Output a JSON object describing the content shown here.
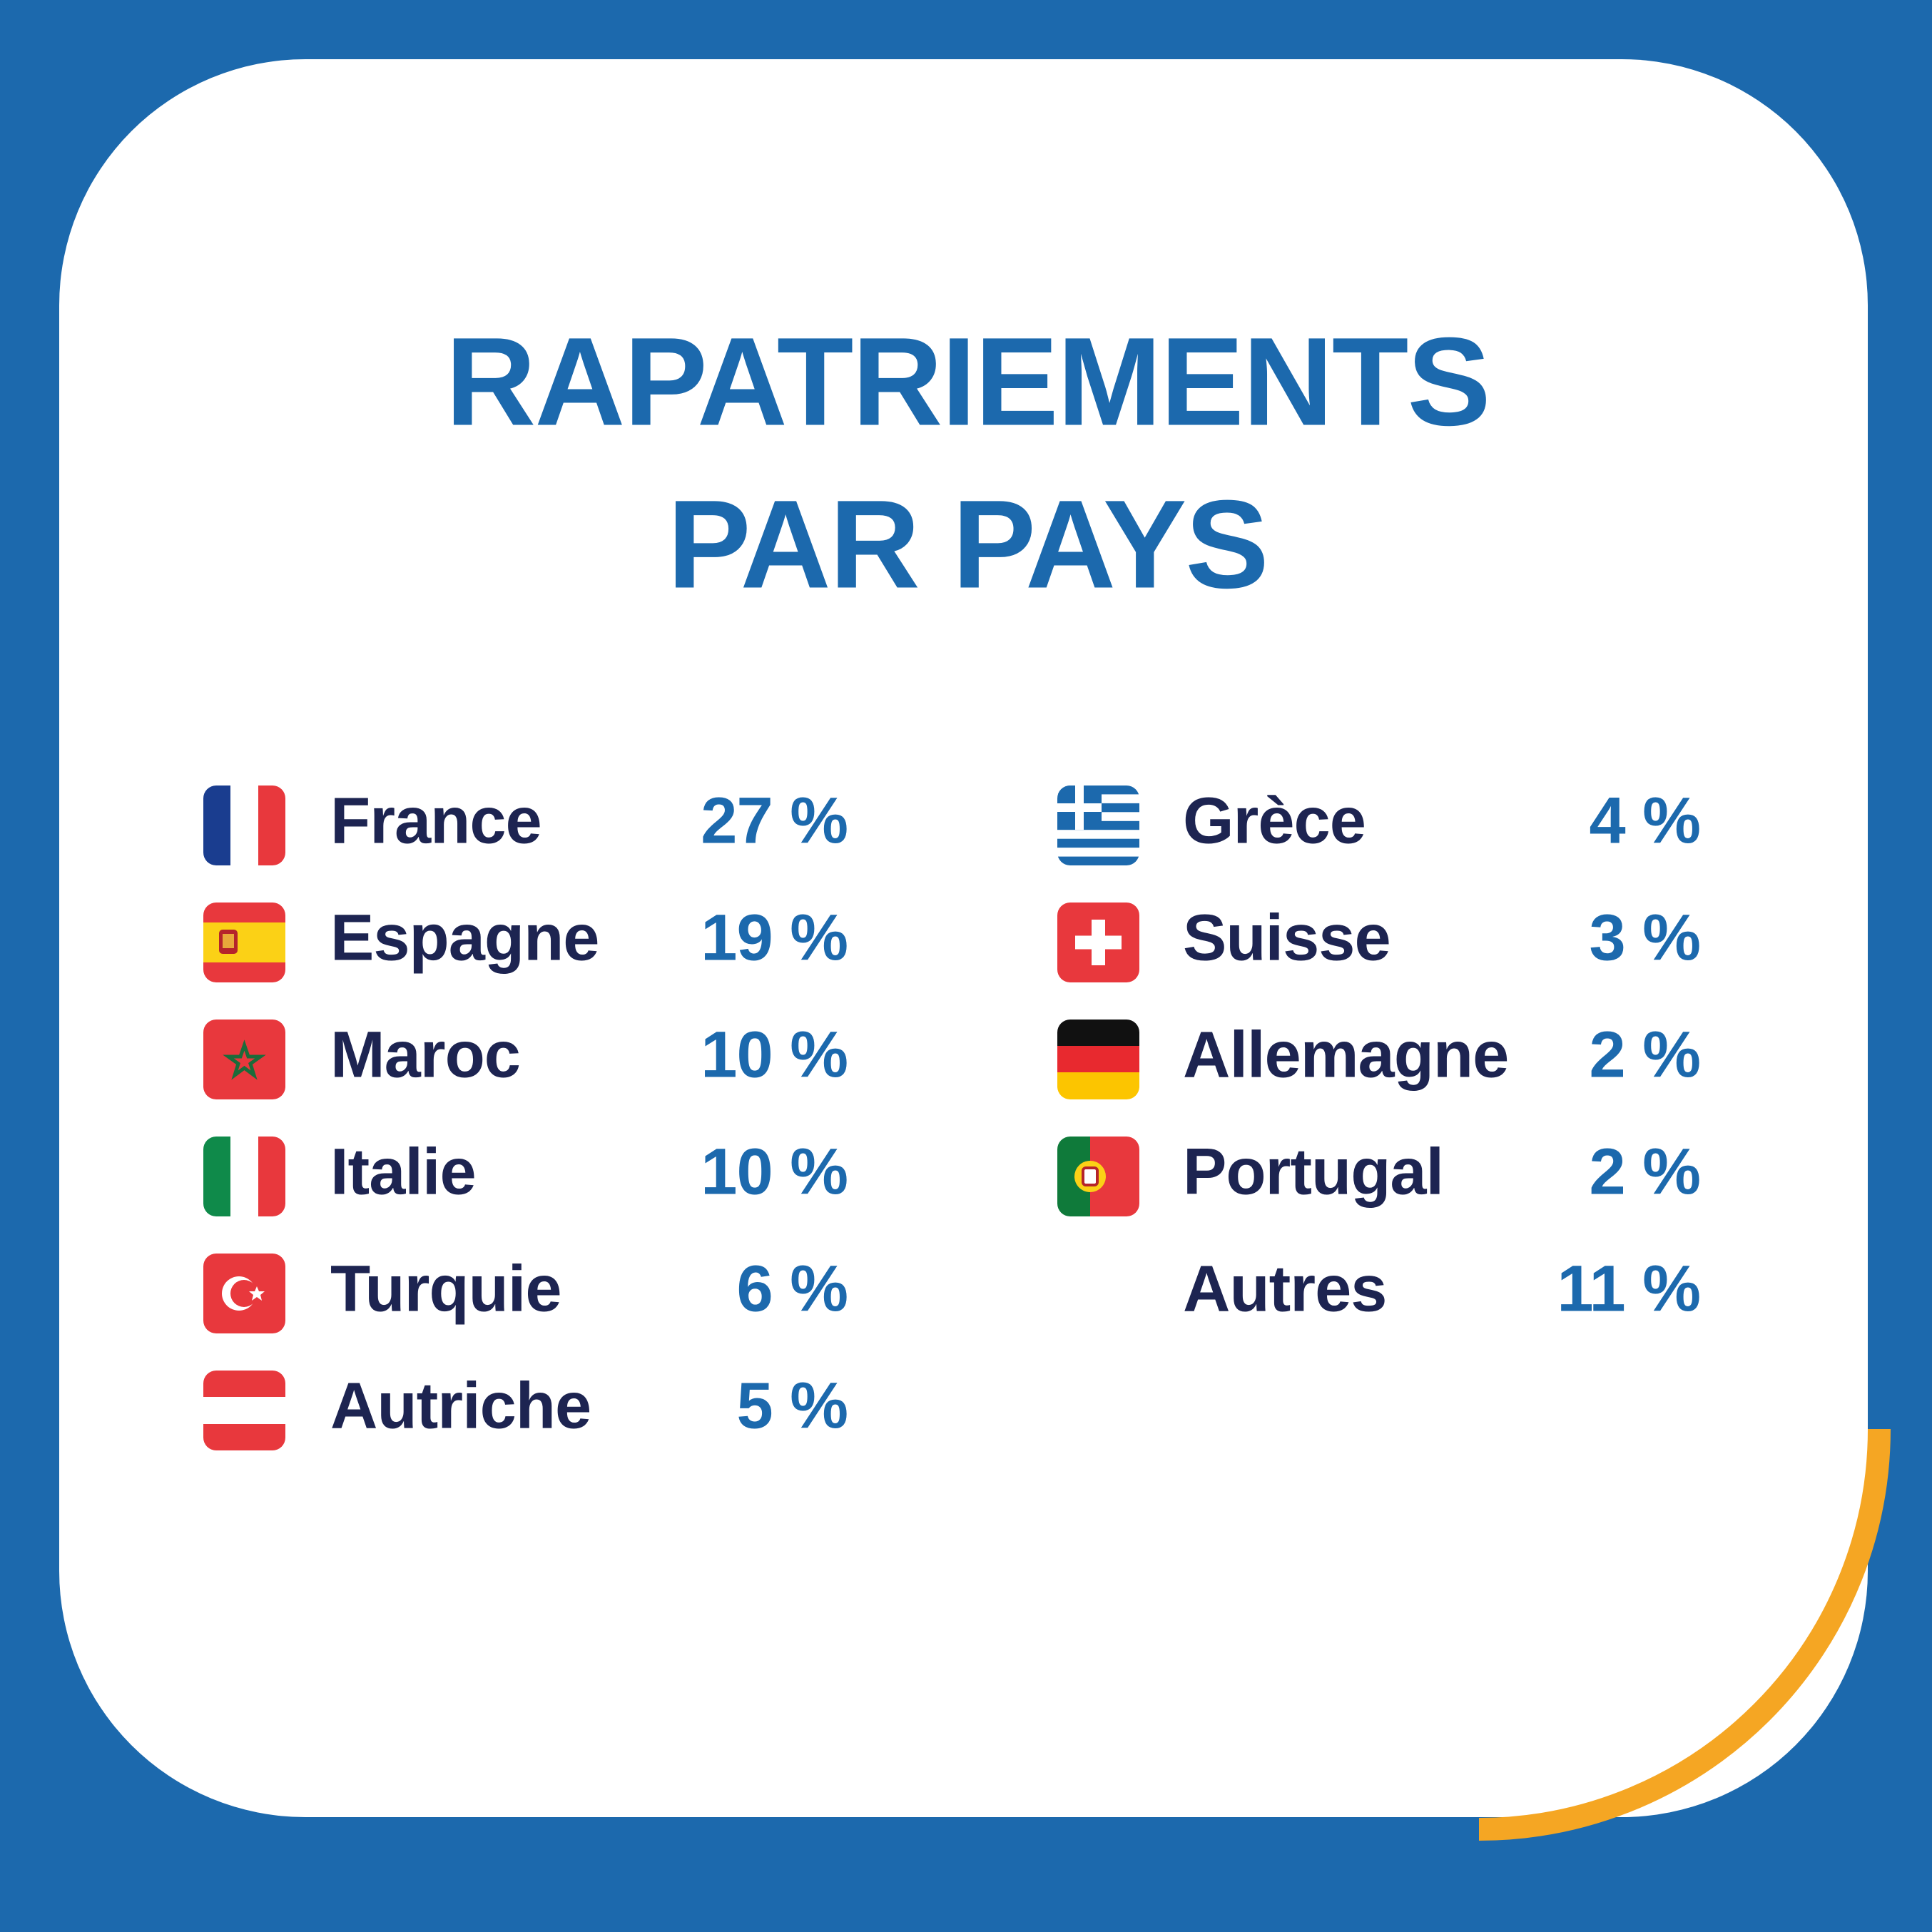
{
  "title": [
    "RAPATRIEMENTS",
    "PAR PAYS"
  ],
  "columns": [
    [
      {
        "country": "France",
        "share": "27 %"
      },
      {
        "country": "Espagne",
        "share": "19 %"
      },
      {
        "country": "Maroc",
        "share": "10 %"
      },
      {
        "country": "Italie",
        "share": "10 %"
      },
      {
        "country": "Turquie",
        "share": "6 %"
      },
      {
        "country": "Autriche",
        "share": "5 %"
      }
    ],
    [
      {
        "country": "Grèce",
        "share": "4 %"
      },
      {
        "country": "Suisse",
        "share": "3 %"
      },
      {
        "country": "Allemagne",
        "share": "2 %"
      },
      {
        "country": "Portugal",
        "share": "2 %"
      },
      {
        "country": "Autres",
        "share": "11 %"
      }
    ]
  ]
}
